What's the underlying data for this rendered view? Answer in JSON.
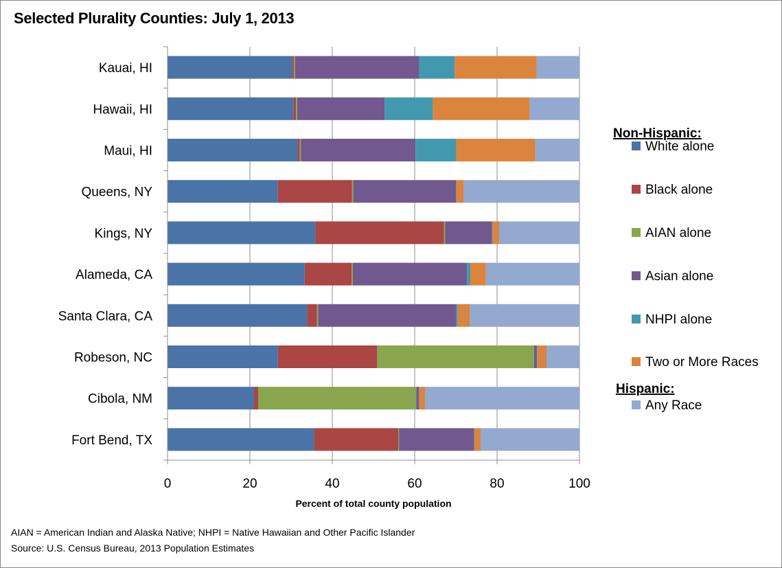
{
  "title": "Selected Plurality Counties: July 1, 2013",
  "footnote": "AIAN = American Indian and Alaska Native; NHPI = Native Hawaiian and Other Pacific Islander",
  "source": "Source: U.S. Census Bureau, 2013 Population Estimates",
  "legend": {
    "group1": "Non-Hispanic:",
    "group2": "Hispanic:"
  },
  "chart_data": {
    "type": "bar",
    "orientation": "horizontal",
    "stacked": true,
    "title": "Selected Plurality Counties: July 1, 2013",
    "xlabel": "Percent of total county population",
    "ylabel": "",
    "xlim": [
      0,
      100
    ],
    "xticks": [
      0,
      20,
      40,
      60,
      80,
      100
    ],
    "grid": "vertical",
    "legend_position": "right",
    "categories": [
      "Kauai, HI",
      "Hawaii, HI",
      "Maui, HI",
      "Queens, NY",
      "Kings, NY",
      "Alameda, CA",
      "Santa Clara, CA",
      "Robeson, NC",
      "Cibola, NM",
      "Fort Bend, TX"
    ],
    "series": [
      {
        "name": "White alone",
        "color": "#4A73A8",
        "values": [
          30.3,
          30.6,
          31.6,
          26.8,
          35.9,
          33.3,
          33.9,
          26.8,
          21.0,
          35.6
        ]
      },
      {
        "name": "Black alone",
        "color": "#AA4644",
        "values": [
          0.4,
          0.6,
          0.5,
          18.0,
          31.2,
          11.4,
          2.4,
          24.1,
          1.0,
          20.4
        ]
      },
      {
        "name": "AIAN alone",
        "color": "#89A54E",
        "values": [
          0.3,
          0.3,
          0.3,
          0.3,
          0.3,
          0.3,
          0.3,
          38.1,
          38.4,
          0.2
        ]
      },
      {
        "name": "Asian alone",
        "color": "#71588F",
        "values": [
          30.1,
          21.2,
          27.8,
          24.9,
          11.4,
          27.7,
          33.4,
          0.7,
          0.6,
          18.2
        ]
      },
      {
        "name": "NHPI alone",
        "color": "#4298AF",
        "values": [
          8.6,
          11.7,
          9.9,
          0.1,
          0.1,
          0.8,
          0.4,
          0.1,
          0.1,
          0.1
        ]
      },
      {
        "name": "Two or More Races",
        "color": "#DB843D",
        "values": [
          19.9,
          23.5,
          19.2,
          1.8,
          1.6,
          3.8,
          3.0,
          2.2,
          1.4,
          1.5
        ]
      },
      {
        "name": "Any Race",
        "color": "#93A9CF",
        "group": "Hispanic",
        "values": [
          10.4,
          12.1,
          10.7,
          28.1,
          19.5,
          22.7,
          26.6,
          8.0,
          37.5,
          24.0
        ]
      }
    ]
  }
}
